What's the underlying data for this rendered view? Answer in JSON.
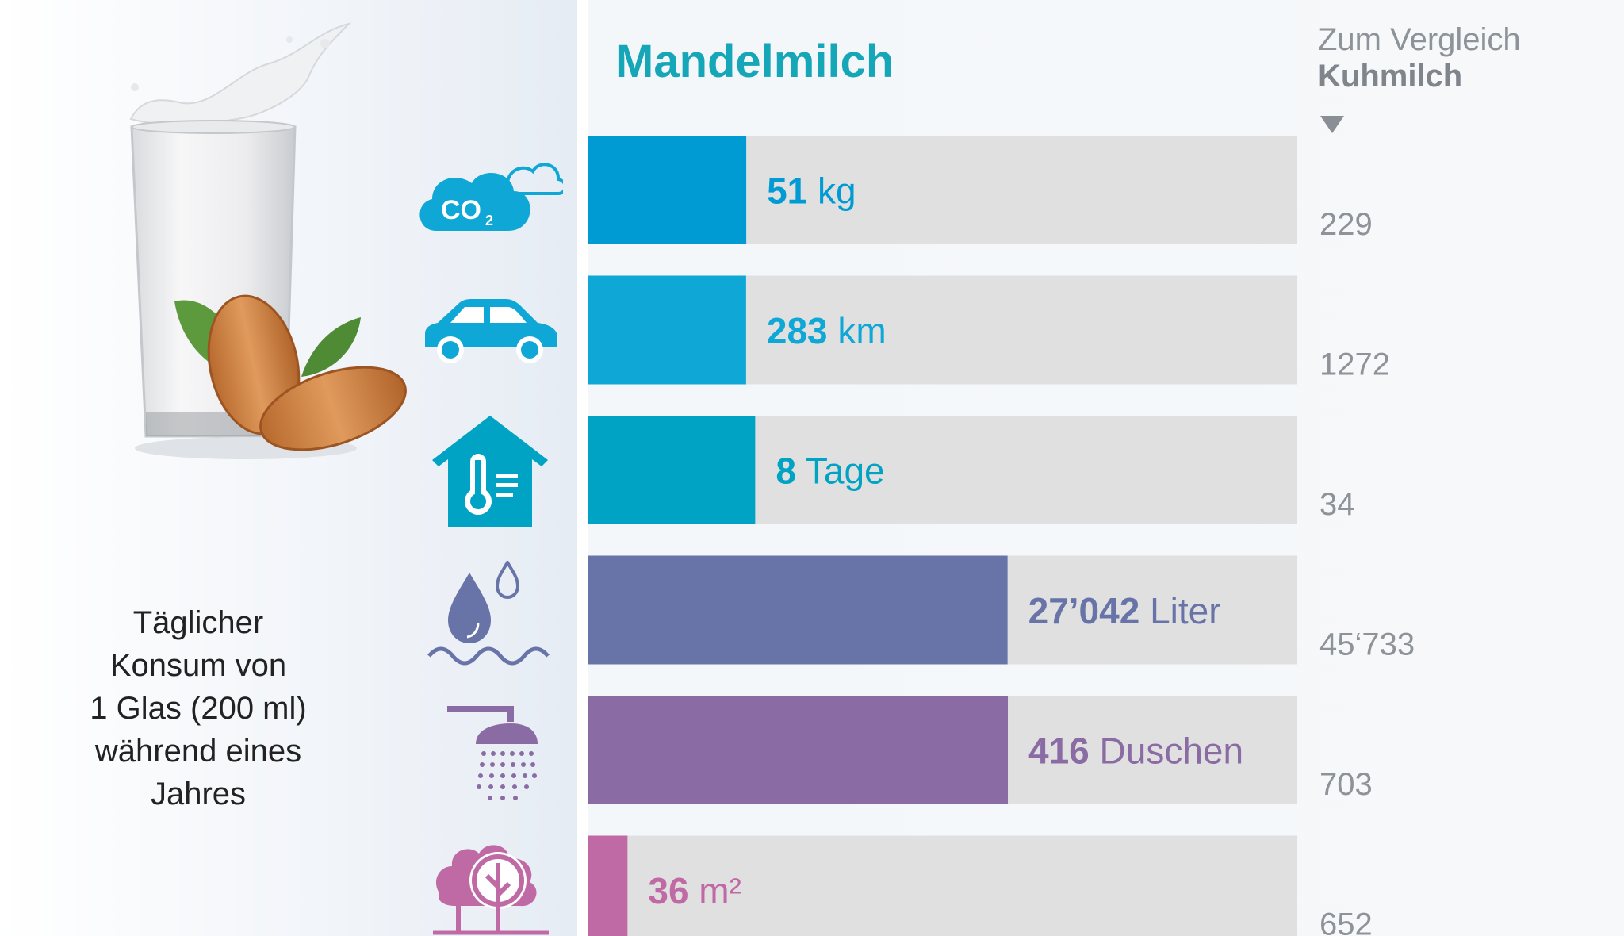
{
  "title": "Mandelmilch",
  "comparison": {
    "line1": "Zum Vergleich",
    "line2": "Kuhmilch"
  },
  "description": {
    "lines": [
      "Täglicher",
      "Konsum von",
      "1 Glas (200 ml)",
      "während eines",
      "Jahres"
    ]
  },
  "chart_data": {
    "type": "bar",
    "orientation": "horizontal",
    "title": "Mandelmilch",
    "series": [
      {
        "name": "Mandelmilch",
        "values": [
          51,
          283,
          8,
          27042,
          416,
          36
        ]
      },
      {
        "name": "Kuhmilch",
        "values": [
          229,
          1272,
          34,
          45733,
          703,
          652
        ]
      }
    ],
    "rows": [
      {
        "icon": "co2-cloud-icon",
        "value": 51,
        "value_label": "51",
        "unit": "kg",
        "compare_label": "229",
        "compare_value": 229,
        "color": "#019bd4"
      },
      {
        "icon": "car-icon",
        "value": 283,
        "value_label": "283",
        "unit": "km",
        "compare_label": "1272",
        "compare_value": 1272,
        "color": "#0fa8d6"
      },
      {
        "icon": "house-thermometer-icon",
        "value": 8,
        "value_label": "8",
        "unit": "Tage",
        "compare_label": "34",
        "compare_value": 34,
        "color": "#00a3c4"
      },
      {
        "icon": "water-drop-icon",
        "value": 27042,
        "value_label": "27’042",
        "unit": "Liter",
        "compare_label": "45‘733",
        "compare_value": 45733,
        "color": "#6874a8"
      },
      {
        "icon": "shower-icon",
        "value": 416,
        "value_label": "416",
        "unit": "Duschen",
        "compare_label": "703",
        "compare_value": 703,
        "color": "#8a6ba4"
      },
      {
        "icon": "trees-icon",
        "value": 36,
        "value_label": "36",
        "unit": "m²",
        "compare_label": "652",
        "compare_value": 652,
        "color": "#c06aa5"
      }
    ]
  },
  "colors": {
    "title": "#15a6b8",
    "bar_track": "#e0e0e0",
    "compare_text": "#8e9399"
  }
}
